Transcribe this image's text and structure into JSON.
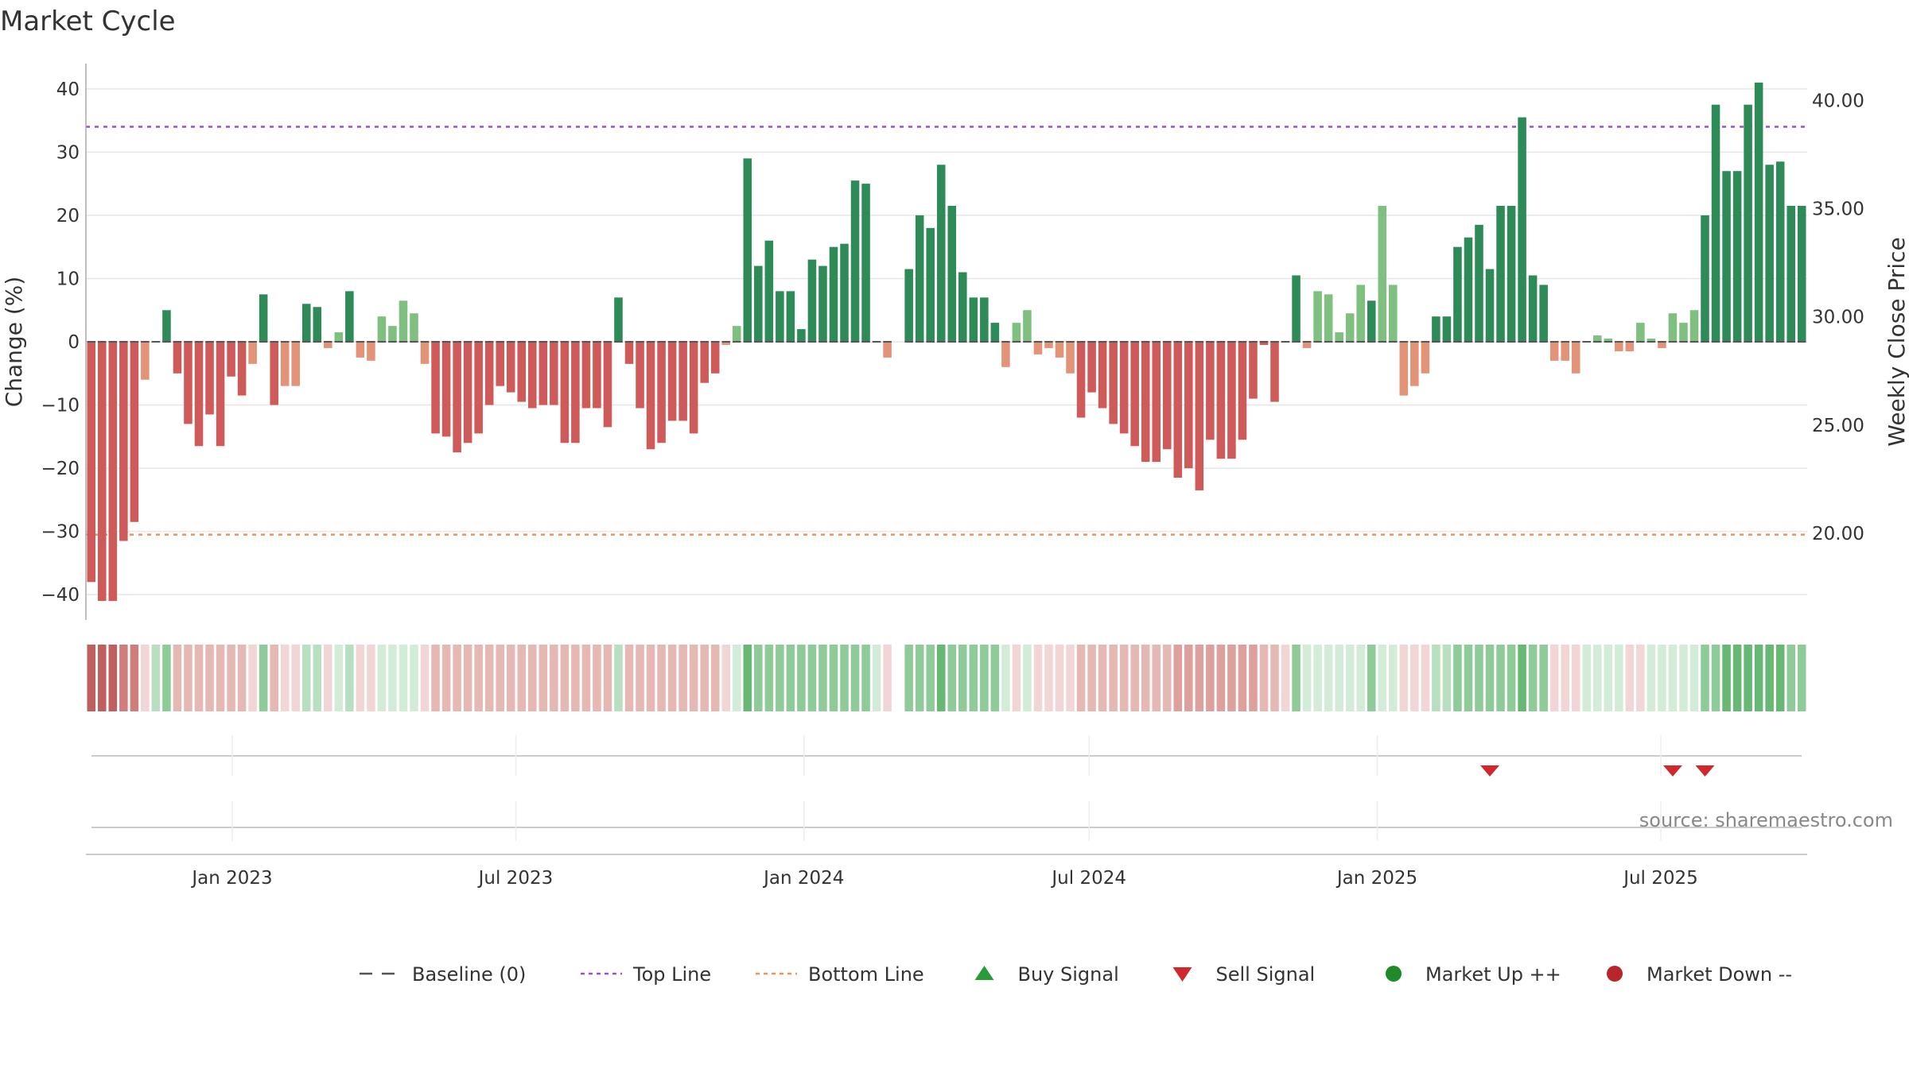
{
  "chart_data": {
    "type": "bar",
    "title": "Market Cycle",
    "ylabel": "Change (%)",
    "y2label": "Weekly Close Price",
    "ylim": [
      -44,
      44
    ],
    "y_ticks": [
      40,
      30,
      20,
      10,
      0,
      -10,
      -20,
      -30,
      -40
    ],
    "y_tick_labels": [
      "40",
      "30",
      "20",
      "10",
      "0",
      "−10",
      "−20",
      "−30",
      "−40"
    ],
    "y2lim": [
      16.0,
      41.7
    ],
    "y2_ticks": [
      40,
      35,
      30,
      25,
      20
    ],
    "y2_tick_labels": [
      "40.00",
      "35.00",
      "30.00",
      "25.00",
      "20.00"
    ],
    "x_tick_labels": [
      {
        "label": "Jan 2023",
        "date": "2023-01-01"
      },
      {
        "label": "Jul 2023",
        "date": "2023-07-01"
      },
      {
        "label": "Jan 2024",
        "date": "2024-01-01"
      },
      {
        "label": "Jul 2024",
        "date": "2024-07-01"
      },
      {
        "label": "Jan 2025",
        "date": "2025-01-01"
      },
      {
        "label": "Jul 2025",
        "date": "2025-07-01"
      }
    ],
    "first_week": "2022-10-03",
    "last_week": "2025-09-29",
    "top_line": 34,
    "bottom_line": -30.5,
    "grid": true,
    "legend_position": "bottom",
    "values": [
      -38,
      -41,
      -41,
      -31.5,
      -28.5,
      -6,
      0,
      5,
      -5,
      -13,
      -16.5,
      -11.5,
      -16.5,
      -5.5,
      -8.5,
      -3.5,
      7.5,
      -10,
      -7,
      -7,
      6,
      5.5,
      -1,
      1.5,
      8,
      -2.5,
      -3,
      4,
      2.5,
      6.5,
      4.5,
      -3.5,
      -14.5,
      -15,
      -17.5,
      -16,
      -14.5,
      -10,
      -7,
      -8,
      -9.5,
      -10.5,
      -10,
      -10,
      -16,
      -16,
      -10.5,
      -10.5,
      -13.5,
      7,
      -3.5,
      -10.5,
      -17,
      -16,
      -12.5,
      -12.5,
      -14.5,
      -6.5,
      -5,
      -0.5,
      2.5,
      29,
      12,
      16,
      8,
      8,
      2,
      13,
      12,
      15,
      15.5,
      25.5,
      25,
      0,
      -2.5,
      null,
      11.5,
      20,
      18,
      28,
      21.5,
      11,
      7,
      7,
      3,
      -4,
      3,
      5,
      -2,
      -1,
      -2.5,
      -5,
      -12,
      -8,
      -10.5,
      -13,
      -14.5,
      -16.5,
      -19,
      -19,
      -17,
      -21.5,
      -20,
      -23.5,
      -15.5,
      -18.5,
      -18.5,
      -15.5,
      -9,
      -0.5,
      -9.5,
      0,
      10.5,
      -1,
      8,
      7.5,
      1.5,
      4.5,
      9,
      6.5,
      21.5,
      9,
      -8.5,
      -7,
      -5,
      4,
      4,
      15,
      16.5,
      18.5,
      11.5,
      21.5,
      21.5,
      35.5,
      10.5,
      9,
      -3,
      -3,
      -5,
      0,
      1,
      0.5,
      -1.5,
      -1.5,
      3,
      0.5,
      -1,
      4.5,
      3,
      5,
      20,
      37.5,
      27,
      27,
      37.5,
      41,
      28,
      28.5,
      21.5,
      21.5
    ],
    "band_levels": [
      -5,
      -5,
      -5,
      -4,
      -4,
      -1,
      2,
      3,
      -2,
      -2,
      -2,
      -2,
      -2,
      -2,
      -2,
      -1,
      3,
      -2,
      -1,
      -1,
      2,
      2,
      -1,
      1,
      2,
      -1,
      -1,
      1,
      1,
      1,
      1,
      -1,
      -2,
      -2,
      -2,
      -2,
      -2,
      -2,
      -2,
      -2,
      -2,
      -2,
      -2,
      -2,
      -2,
      -2,
      -2,
      -2,
      -2,
      2,
      -2,
      -2,
      -2,
      -2,
      -2,
      -2,
      -2,
      -2,
      -2,
      -1,
      1,
      4,
      3,
      3,
      3,
      3,
      3,
      3,
      3,
      3,
      3,
      3,
      3,
      1,
      -1,
      null,
      3,
      3,
      3,
      4,
      3,
      3,
      3,
      3,
      3,
      1,
      -1,
      1,
      -1,
      -1,
      -1,
      -1,
      -2,
      -2,
      -2,
      -2,
      -2,
      -2,
      -2,
      -2,
      -2,
      -3,
      -3,
      -3,
      -3,
      -3,
      -3,
      -3,
      -3,
      -2,
      -2,
      -1,
      3,
      1,
      1,
      1,
      1,
      1,
      1,
      3,
      1,
      1,
      -1,
      -1,
      -1,
      2,
      2,
      3,
      3,
      3,
      3,
      3,
      3,
      4,
      3,
      3,
      -1,
      -1,
      -1,
      1,
      1,
      1,
      1,
      -1,
      -1,
      1,
      1,
      1,
      1,
      1,
      3,
      3,
      4,
      4,
      4,
      4,
      4,
      4,
      3,
      3
    ],
    "sell_signals": [
      130,
      147,
      150
    ],
    "buy_signals": [],
    "source": "source: sharemaestro.com",
    "legend": [
      {
        "label": "Baseline (0)",
        "kind": "dash",
        "color": "#555555"
      },
      {
        "label": "Top Line",
        "kind": "dot",
        "color": "#9a4fd0"
      },
      {
        "label": "Bottom Line",
        "kind": "dot",
        "color": "#e8945a"
      },
      {
        "label": "Buy Signal",
        "kind": "up",
        "color": "#2a9a3a"
      },
      {
        "label": "Sell Signal",
        "kind": "down",
        "color": "#d0282c"
      },
      {
        "label": "Market Up ++",
        "kind": "circle",
        "color": "#1f8a2a"
      },
      {
        "label": "Market Down --",
        "kind": "circle",
        "color": "#b8262c"
      }
    ],
    "colors": {
      "strong_up": "#2e8b57",
      "up": "#7fbf7f",
      "down": "#e39377",
      "strong_down": "#cf5a5a",
      "top_line": "#9a4fd0",
      "bottom_line": "#e8945a"
    }
  }
}
